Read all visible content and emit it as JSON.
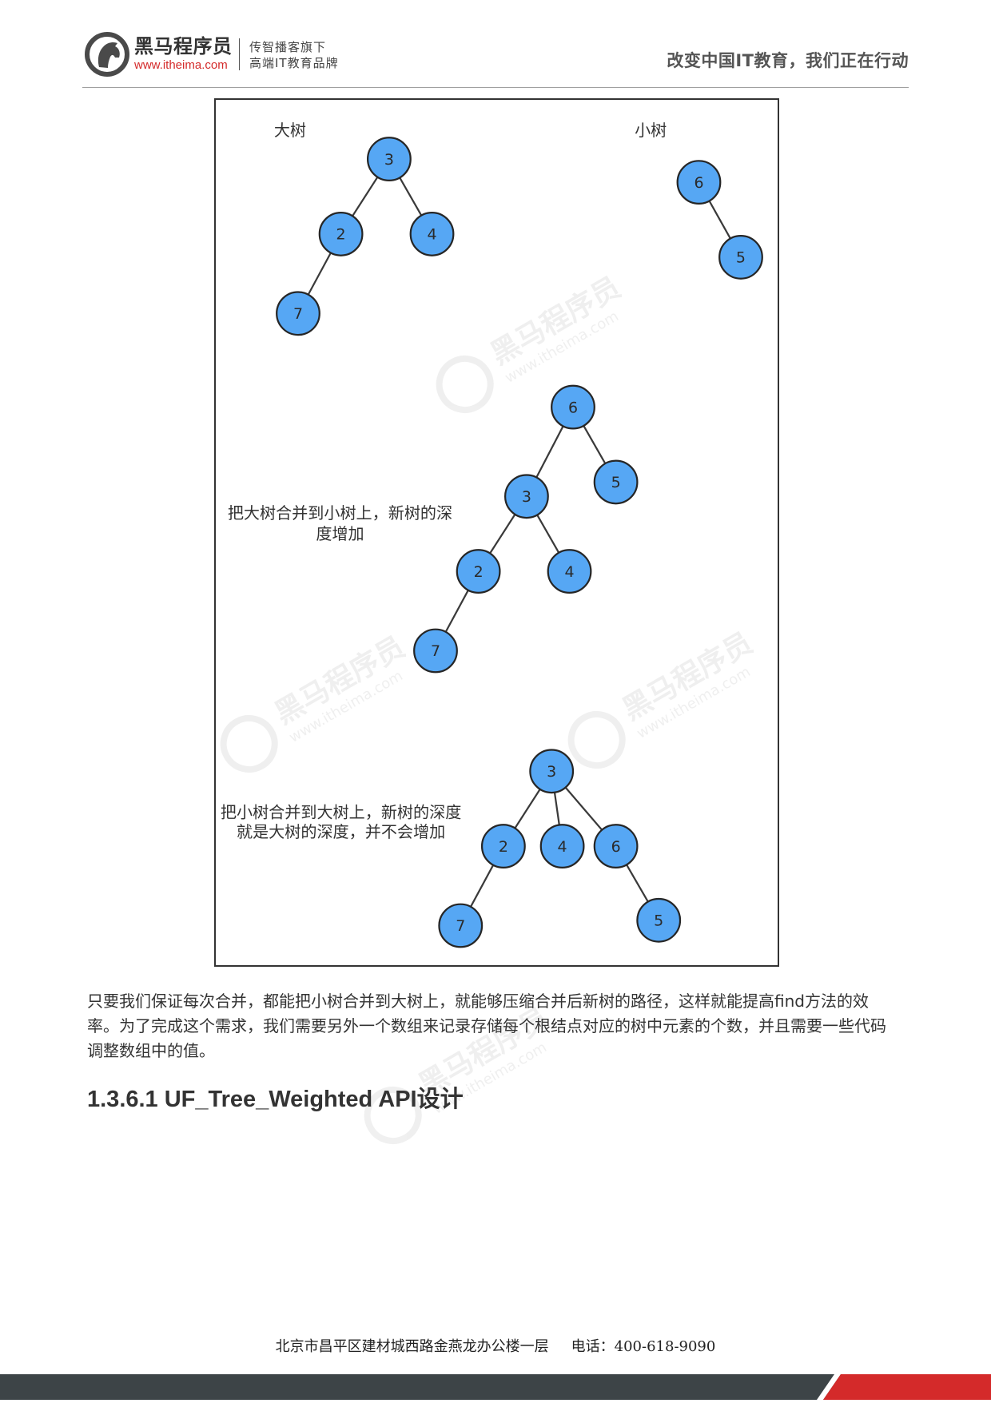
{
  "header": {
    "logo_icon": "horse-head-icon",
    "brand_name": "黑马程序员",
    "brand_url": "www.itheima.com",
    "tagline_line1": "传智播客旗下",
    "tagline_line2": "高端IT教育品牌",
    "slogan": "改变中国IT教育，我们正在行动"
  },
  "diagram": {
    "big_tree": {
      "label": "大树",
      "nodes": [
        "3",
        "2",
        "4",
        "7"
      ]
    },
    "small_tree": {
      "label": "小树",
      "nodes": [
        "6",
        "5"
      ]
    },
    "merge_big_into_small": {
      "caption_line1": "把大树合并到小树上，新树的深",
      "caption_line2": "度增加",
      "nodes": [
        "6",
        "3",
        "5",
        "2",
        "4",
        "7"
      ]
    },
    "merge_small_into_big": {
      "caption_line1": "把小树合并到大树上，新树的深度",
      "caption_line2": "就是大树的深度，并不会增加",
      "nodes": [
        "3",
        "2",
        "4",
        "6",
        "7",
        "5"
      ]
    }
  },
  "body": {
    "paragraph_lines": [
      "只要我们保证每次合并，都能把小树合并到大树上，就能够压缩合并后新树的路径，这样就能提高find方法的效",
      "率。为了完成这个需求，我们需要另外一个数组来记录存储每个根结点对应的树中元素的个数，并且需要一些代码",
      "调整数组中的值。"
    ],
    "heading": "1.3.6.1 UF_Tree_Weighted API设计"
  },
  "footer": {
    "address": "北京市昌平区建材城西路金燕龙办公楼一层",
    "phone": "电话：400-618-9090"
  },
  "watermark": {
    "brand": "黑马程序员",
    "url": "www.itheima.com"
  },
  "colors": {
    "node_fill": "#56a7f4",
    "node_stroke": "#262626",
    "brand_red": "#d42a2a",
    "footer_bar": "#3d4447",
    "footer_accent": "#d42a2a"
  }
}
